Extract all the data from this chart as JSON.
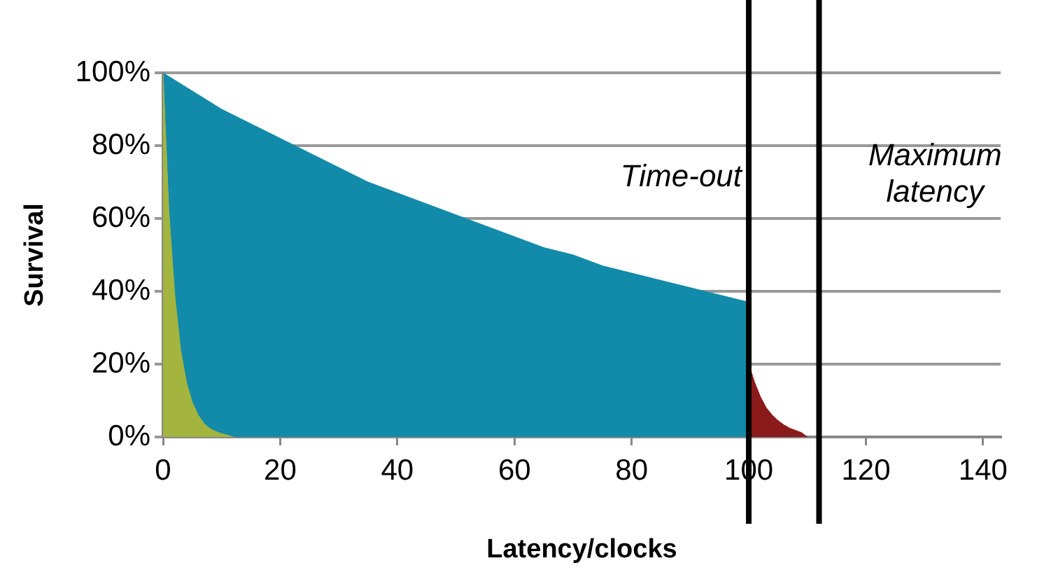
{
  "chart_data": {
    "type": "area",
    "xlabel": "Latency/clocks",
    "ylabel": "Survival",
    "xlim": [
      0,
      143
    ],
    "xticks": [
      0,
      20,
      40,
      60,
      80,
      100,
      120,
      140
    ],
    "ylim": [
      0,
      100
    ],
    "yticks": [
      {
        "value": 0,
        "label": "0%"
      },
      {
        "value": 20,
        "label": "20%"
      },
      {
        "value": 40,
        "label": "40%"
      },
      {
        "value": 60,
        "label": "60%"
      },
      {
        "value": 80,
        "label": "80%"
      },
      {
        "value": 100,
        "label": "100%"
      }
    ],
    "grid": "y",
    "legend": false,
    "series": [
      {
        "color": "#128aaa",
        "x": [
          0,
          5,
          10,
          15,
          20,
          25,
          30,
          35,
          40,
          45,
          50,
          55,
          60,
          65,
          70,
          75,
          80,
          85,
          90,
          95,
          100
        ],
        "values": [
          100,
          95,
          90,
          86,
          82,
          78,
          74,
          70,
          67,
          64,
          61,
          58,
          55,
          52,
          50,
          47,
          45,
          43,
          41,
          39,
          37
        ]
      },
      {
        "color": "#a3b53e",
        "x": [
          0,
          1,
          2,
          3,
          4,
          5,
          6,
          7,
          8,
          9,
          10,
          11,
          12
        ],
        "values": [
          100,
          62,
          39,
          24,
          15,
          9.5,
          6,
          3.7,
          2.3,
          1.5,
          0.9,
          0.5,
          0
        ]
      },
      {
        "color": "#8b1a1a",
        "x": [
          100,
          101,
          102,
          103,
          104,
          105,
          106,
          107,
          108,
          109,
          110
        ],
        "values": [
          20,
          15,
          11,
          8,
          6,
          4.5,
          3.3,
          2.4,
          1.8,
          1.2,
          0
        ]
      }
    ],
    "ref_lines": [
      {
        "axis": "x",
        "value": 100,
        "label": "Time-out",
        "color": "#000000"
      },
      {
        "axis": "x",
        "value": 112,
        "label": "Maximum latency",
        "color": "#000000"
      }
    ]
  }
}
